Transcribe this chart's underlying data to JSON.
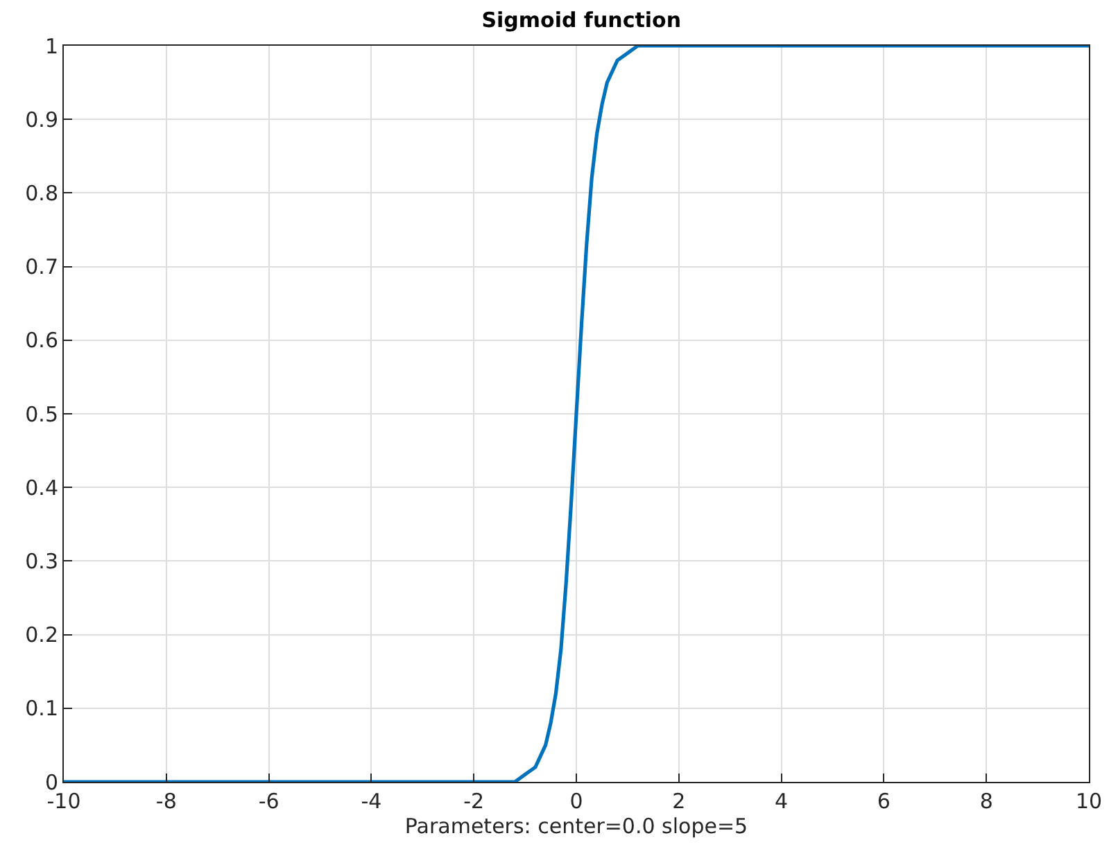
{
  "chart_data": {
    "type": "line",
    "title": "Sigmoid function",
    "xlabel": "Parameters: center=0.0 slope=5",
    "x": [
      -10,
      -8,
      -6,
      -4,
      -2,
      -1.5,
      -1.2,
      -1,
      -0.8,
      -0.6,
      -0.5,
      -0.4,
      -0.3,
      -0.2,
      -0.1,
      0,
      0.1,
      0.2,
      0.3,
      0.4,
      0.5,
      0.6,
      0.8,
      1,
      1.2,
      1.5,
      2,
      4,
      6,
      8,
      10
    ],
    "series": [
      {
        "color": "#0072bd",
        "values": [
          0,
          0,
          0,
          0,
          0,
          0,
          0,
          0.01,
          0.02,
          0.05,
          0.08,
          0.12,
          0.18,
          0.27,
          0.38,
          0.5,
          0.62,
          0.73,
          0.82,
          0.88,
          0.92,
          0.95,
          0.98,
          0.99,
          1,
          1,
          1,
          1,
          1,
          1,
          1
        ]
      }
    ],
    "xlim": [
      -10,
      10
    ],
    "xticks": [
      -10,
      -8,
      -6,
      -4,
      -2,
      0,
      2,
      4,
      6,
      8,
      10
    ],
    "ylim": [
      0,
      1
    ],
    "yticks": [
      0,
      0.1,
      0.2,
      0.3,
      0.4,
      0.5,
      0.6,
      0.7,
      0.8,
      0.9,
      1
    ],
    "grid": true,
    "marker": "none",
    "line_style": "solid"
  }
}
